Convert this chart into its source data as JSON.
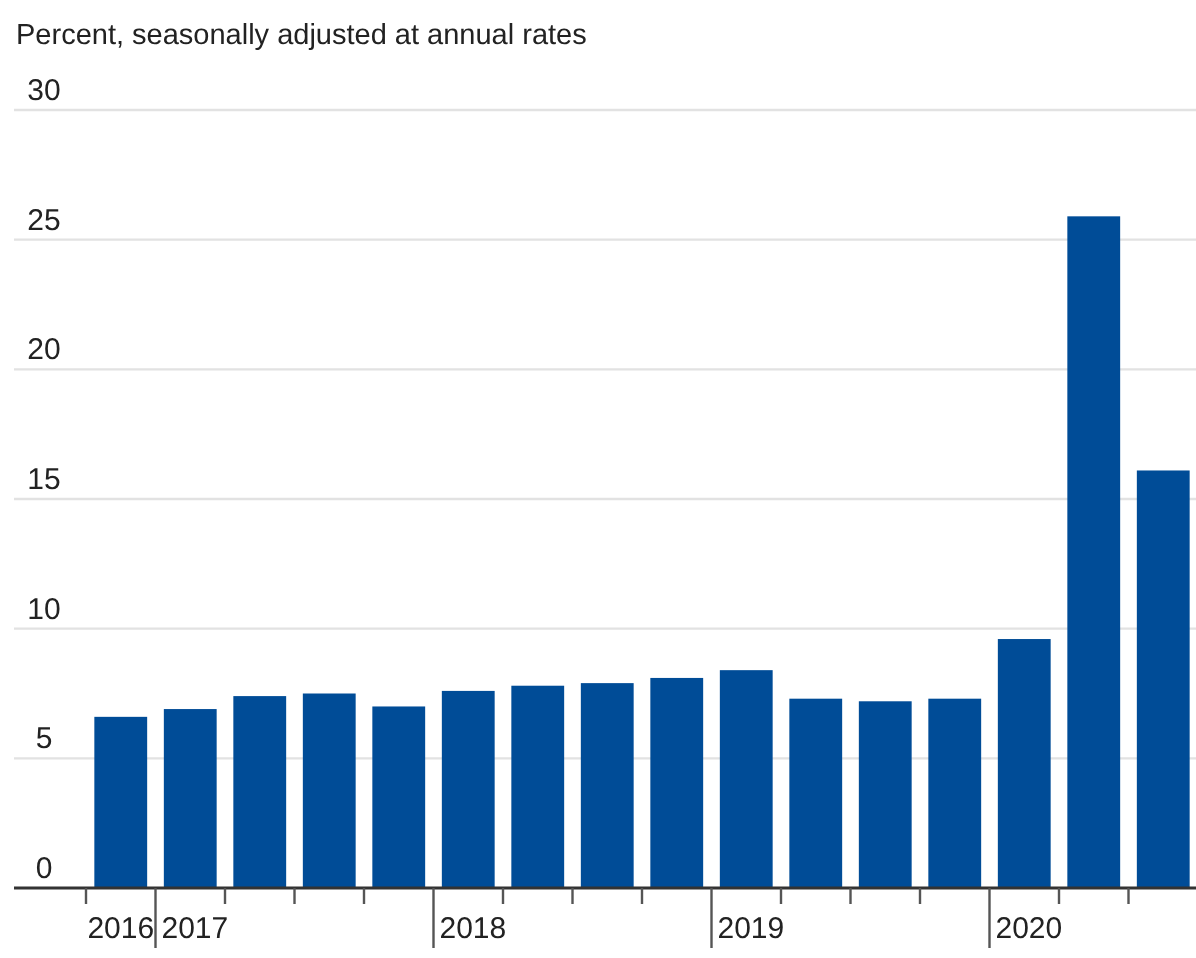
{
  "chart_data": {
    "type": "bar",
    "ylabel": "Percent, seasonally adjusted at annual rates",
    "categories": [
      "2016",
      "2017",
      null,
      null,
      null,
      "2018",
      null,
      null,
      null,
      "2019",
      null,
      null,
      null,
      "2020",
      null,
      null
    ],
    "values": [
      6.6,
      6.9,
      7.4,
      7.5,
      7.0,
      7.6,
      7.8,
      7.9,
      8.1,
      8.4,
      7.3,
      7.2,
      7.3,
      9.6,
      25.9,
      16.1
    ],
    "color": "#004c97",
    "ylim": [
      0,
      30
    ],
    "yticks": [
      0,
      5,
      10,
      15,
      20,
      25,
      30
    ],
    "grid": "y"
  }
}
